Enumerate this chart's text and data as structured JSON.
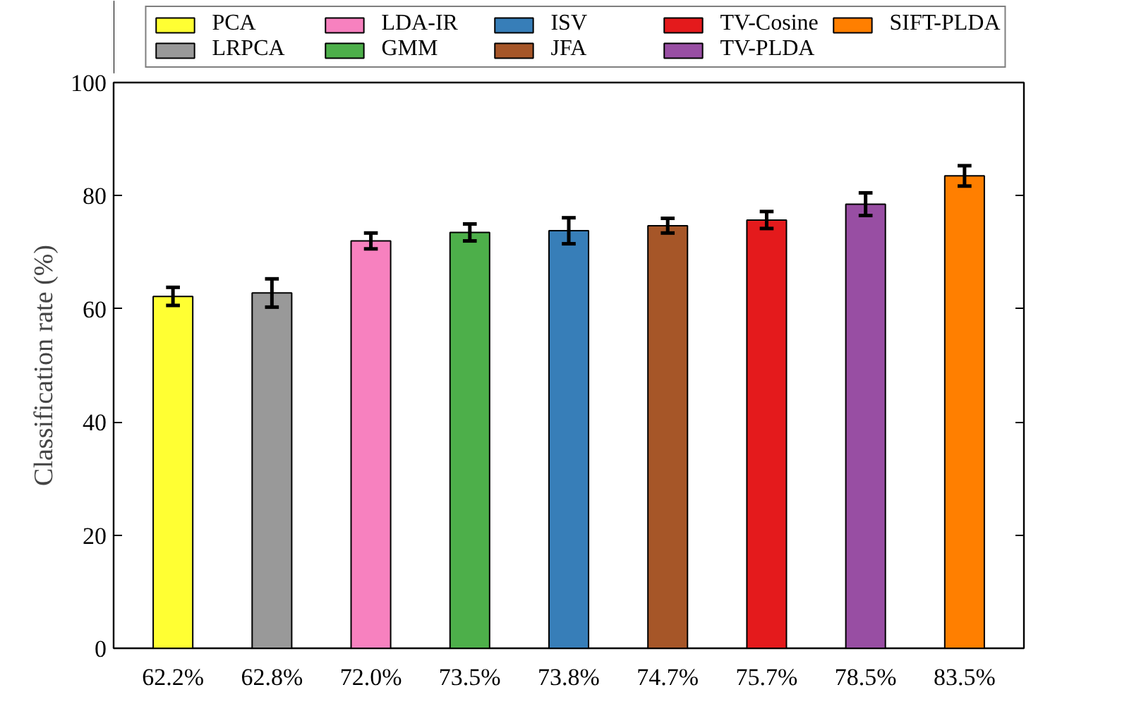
{
  "chart_data": {
    "type": "bar",
    "ylabel": "Classification rate (%)",
    "categories": [
      "62.2%",
      "62.8%",
      "72.0%",
      "73.5%",
      "73.8%",
      "74.7%",
      "75.7%",
      "78.5%",
      "83.5%"
    ],
    "series": [
      {
        "name": "PCA",
        "color": "#ffff33",
        "values": [
          62.2,
          null,
          null,
          null,
          null,
          null,
          null,
          null,
          null
        ],
        "errors": [
          1.6,
          null,
          null,
          null,
          null,
          null,
          null,
          null,
          null
        ]
      },
      {
        "name": "LRPCA",
        "color": "#999999",
        "values": [
          null,
          62.8,
          null,
          null,
          null,
          null,
          null,
          null,
          null
        ],
        "errors": [
          null,
          2.5,
          null,
          null,
          null,
          null,
          null,
          null,
          null
        ]
      },
      {
        "name": "LDA-IR",
        "color": "#f781bf",
        "values": [
          null,
          null,
          72.0,
          null,
          null,
          null,
          null,
          null,
          null
        ],
        "errors": [
          null,
          null,
          1.4,
          null,
          null,
          null,
          null,
          null,
          null
        ]
      },
      {
        "name": "GMM",
        "color": "#4daf4a",
        "values": [
          null,
          null,
          null,
          73.5,
          null,
          null,
          null,
          null,
          null
        ],
        "errors": [
          null,
          null,
          null,
          1.5,
          null,
          null,
          null,
          null,
          null
        ]
      },
      {
        "name": "ISV",
        "color": "#377eb8",
        "values": [
          null,
          null,
          null,
          null,
          73.8,
          null,
          null,
          null,
          null
        ],
        "errors": [
          null,
          null,
          null,
          null,
          2.3,
          null,
          null,
          null,
          null
        ]
      },
      {
        "name": "JFA",
        "color": "#a65628",
        "values": [
          null,
          null,
          null,
          null,
          null,
          74.7,
          null,
          null,
          null
        ],
        "errors": [
          null,
          null,
          null,
          null,
          null,
          1.3,
          null,
          null,
          null
        ]
      },
      {
        "name": "TV-Cosine",
        "color": "#e41a1c",
        "values": [
          null,
          null,
          null,
          null,
          null,
          null,
          75.7,
          null,
          null
        ],
        "errors": [
          null,
          null,
          null,
          null,
          null,
          null,
          1.5,
          null,
          null
        ]
      },
      {
        "name": "TV-PLDA",
        "color": "#984ea3",
        "values": [
          null,
          null,
          null,
          null,
          null,
          null,
          null,
          78.5,
          null
        ],
        "errors": [
          null,
          null,
          null,
          null,
          null,
          null,
          null,
          2.0,
          null
        ]
      },
      {
        "name": "SIFT-PLDA",
        "color": "#ff7f00",
        "values": [
          null,
          null,
          null,
          null,
          null,
          null,
          null,
          null,
          83.5
        ],
        "errors": [
          null,
          null,
          null,
          null,
          null,
          null,
          null,
          null,
          1.8
        ]
      }
    ],
    "ylim": [
      0,
      100
    ],
    "yticks": [
      0,
      20,
      40,
      60,
      80,
      100
    ],
    "grid": false,
    "legend": "top"
  }
}
